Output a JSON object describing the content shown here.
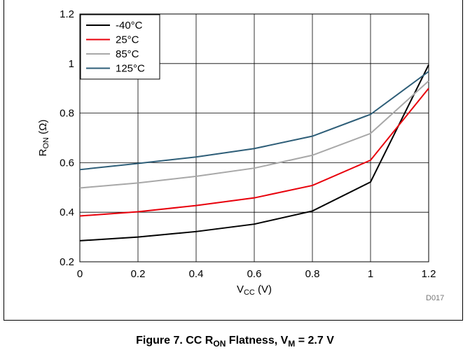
{
  "chart_data": {
    "type": "line",
    "title": "",
    "xlabel_main": "V",
    "xlabel_sub": "CC",
    "xlabel_unit": " (V)",
    "ylabel_main": "R",
    "ylabel_sub": "ON",
    "ylabel_unit": " (Ω)",
    "x": [
      0,
      0.2,
      0.4,
      0.6,
      0.8,
      1.0,
      1.2
    ],
    "xlim": [
      0,
      1.2
    ],
    "ylim": [
      0.2,
      1.2
    ],
    "xticks": [
      "0",
      "0.2",
      "0.4",
      "0.6",
      "0.8",
      "1",
      "1.2"
    ],
    "yticks": [
      "0.2",
      "0.4",
      "0.6",
      "0.8",
      "1",
      "1.2"
    ],
    "grid": true,
    "legend_position": "top-left",
    "series": [
      {
        "name": "-40°C",
        "color": "#000000",
        "values": [
          0.285,
          0.3,
          0.322,
          0.352,
          0.405,
          0.522,
          0.995
        ]
      },
      {
        "name": "25°C",
        "color": "#e8000b",
        "values": [
          0.385,
          0.402,
          0.427,
          0.458,
          0.508,
          0.61,
          0.9
        ]
      },
      {
        "name": "85°C",
        "color": "#a8a8a8",
        "values": [
          0.498,
          0.518,
          0.545,
          0.578,
          0.63,
          0.718,
          0.93
        ]
      },
      {
        "name": "125°C",
        "color": "#2e5e78",
        "values": [
          0.572,
          0.597,
          0.623,
          0.657,
          0.707,
          0.795,
          0.968
        ]
      }
    ]
  },
  "figure_id": "D017",
  "caption": {
    "prefix": "Figure 7. CC R",
    "r_sub": "ON",
    "middle": " Flatness, V",
    "v_sub": "M",
    "suffix": " = 2.7 V"
  }
}
